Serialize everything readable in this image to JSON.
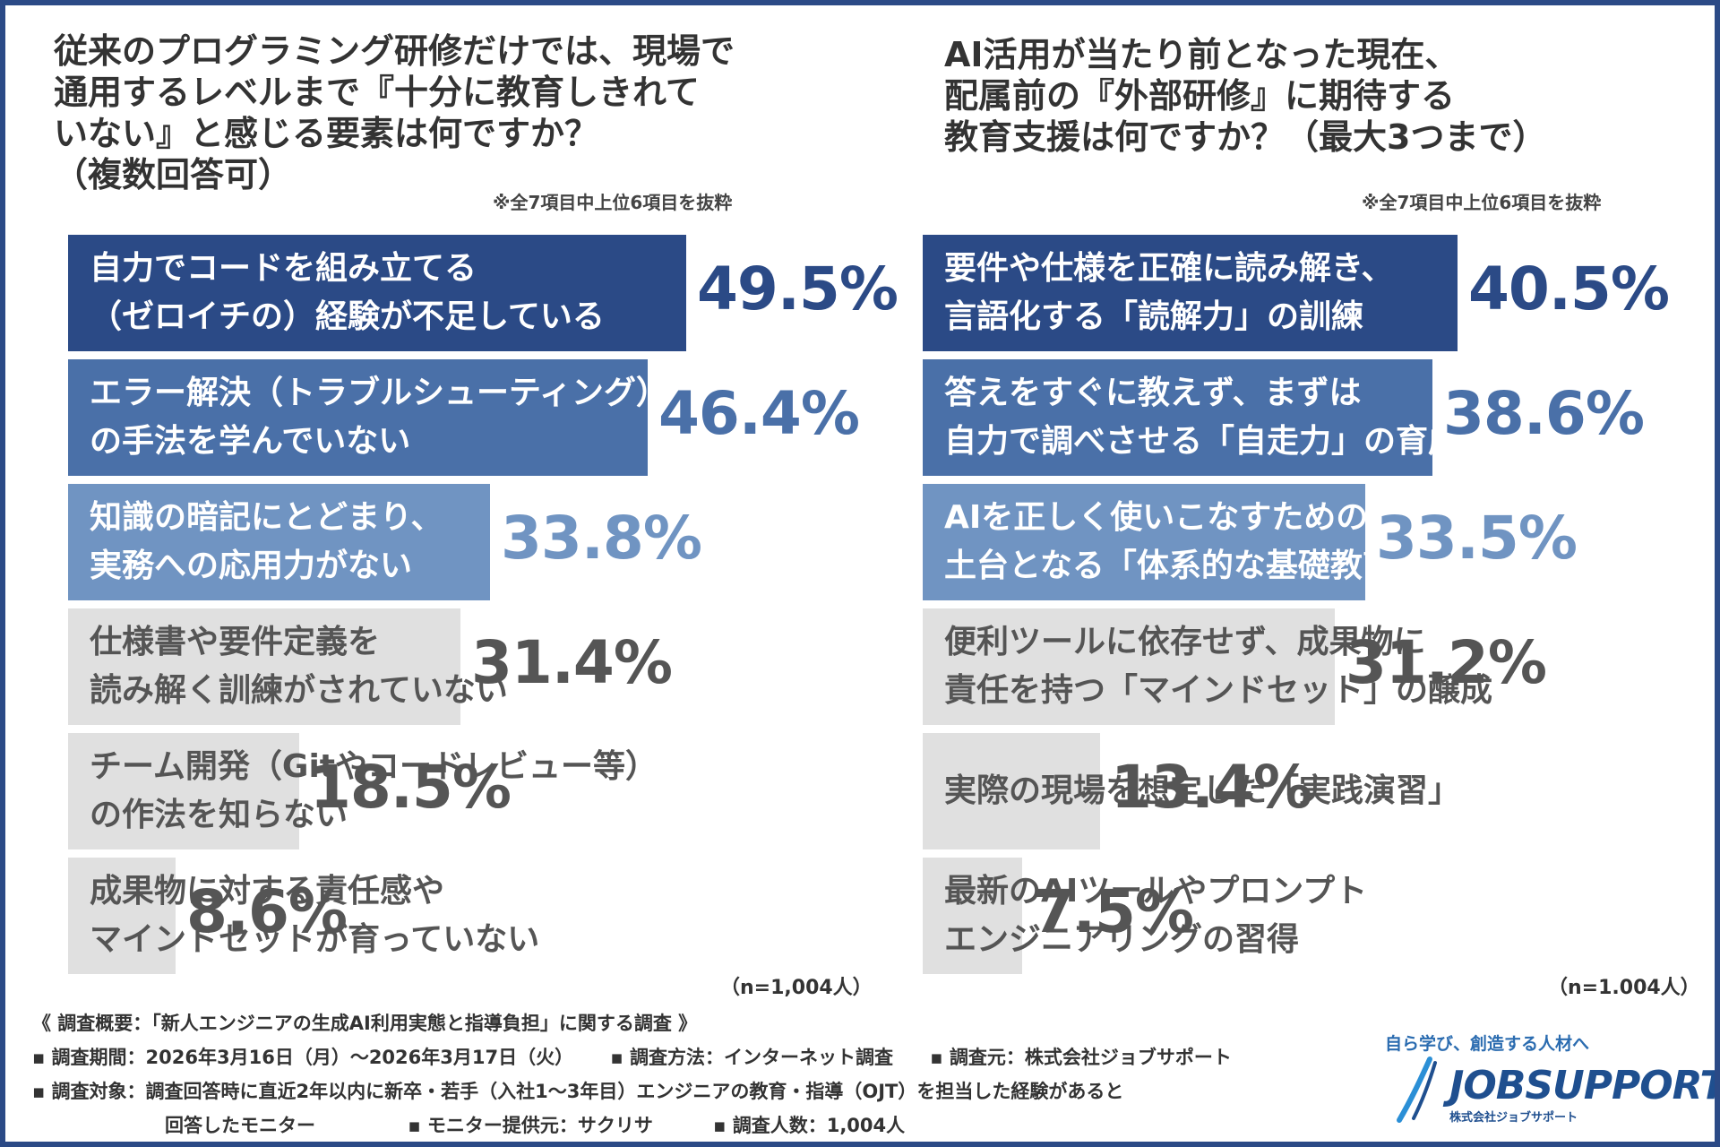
{
  "left": {
    "question": "従来のプログラミング研修だけでは、現場で\n通用するレベルまで『十分に教育しきれて\nいない』と感じる要素は何ですか？\n（複数回答可）",
    "note": "※全7項目中上位6項目を抜粋",
    "n_label": "（n=1,004人）"
  },
  "right": {
    "question": "AI活用が当たり前となった現在、\n配属前の『外部研修』に期待する\n教育支援は何ですか？（最大3つまで）",
    "note": "※全7項目中上位6項目を抜粋",
    "n_label": "（n=1.004人）"
  },
  "footer": {
    "line1": "《 調査概要：「新人エンジニアの生成AI利用実態と指導負担」に関する調査 》",
    "period": "▪ 調査期間：2026年3月16日（月）～2026年3月17日（火）",
    "method": "▪ 調査方法：インターネット調査",
    "source": "▪ 調査元：株式会社ジョブサポート",
    "target": "▪ 調査対象：調査回答時に直近2年以内に新卒・若手（入社1～3年目）エンジニアの教育・指導（OJT）を担当した経験があると",
    "target2": "回答したモニター",
    "provider": "▪ モニター提供元：サクリサ",
    "count": "▪ 調査人数：1,004人"
  },
  "logo": {
    "tagline": "自ら学び、創造する人材へ",
    "name": "JOBSUPPORT",
    "company": "株式会社ジョブサポート"
  },
  "colors": {
    "frame": "#2b4a86",
    "bar_dark": "#2b4a86",
    "bar_mid": "#4a70a8",
    "bar_light": "#7094c2",
    "bar_bg": "#e0e0e0",
    "gray_text": "#555555"
  },
  "chart_data": [
    {
      "type": "bar",
      "orientation": "horizontal",
      "unit": "%",
      "categories": [
        "自力でコードを組み立てる\n（ゼロイチの）経験が不足している",
        "エラー解決（トラブルシューティング）\nの手法を学んでいない",
        "知識の暗記にとどまり、\n実務への応用力がない",
        "仕様書や要件定義を\n読み解く訓練がされていない",
        "チーム開発（Gitやコードレビュー等）\nの作法を知らない",
        "成果物に対する責任感や\nマインドセットが育っていない"
      ],
      "values": [
        49.5,
        46.4,
        33.8,
        31.4,
        18.5,
        8.6
      ],
      "value_labels": [
        "49.5%",
        "46.4%",
        "33.8%",
        "31.4%",
        "18.5%",
        "8.6%"
      ],
      "xlim": [
        0,
        50
      ],
      "highlight_count": 3
    },
    {
      "type": "bar",
      "orientation": "horizontal",
      "unit": "%",
      "categories": [
        "要件や仕様を正確に読み解き、\n言語化する「読解力」の訓練",
        "答えをすぐに教えず、まずは\n自力で調べさせる「自走力」の育成",
        "AIを正しく使いこなすための\n土台となる「体系的な基礎教育」",
        "便利ツールに依存せず、成果物に\n責任を持つ「マインドセット」の醸成",
        "実際の現場を想定した「実践演習」",
        "最新のAIツールやプロンプト\nエンジニアリングの習得"
      ],
      "values": [
        40.5,
        38.6,
        33.5,
        31.2,
        13.4,
        7.5
      ],
      "value_labels": [
        "40.5%",
        "38.6%",
        "33.5%",
        "31.2%",
        "13.4%",
        "7.5%"
      ],
      "xlim": [
        0,
        40.5
      ],
      "highlight_count": 3
    }
  ]
}
